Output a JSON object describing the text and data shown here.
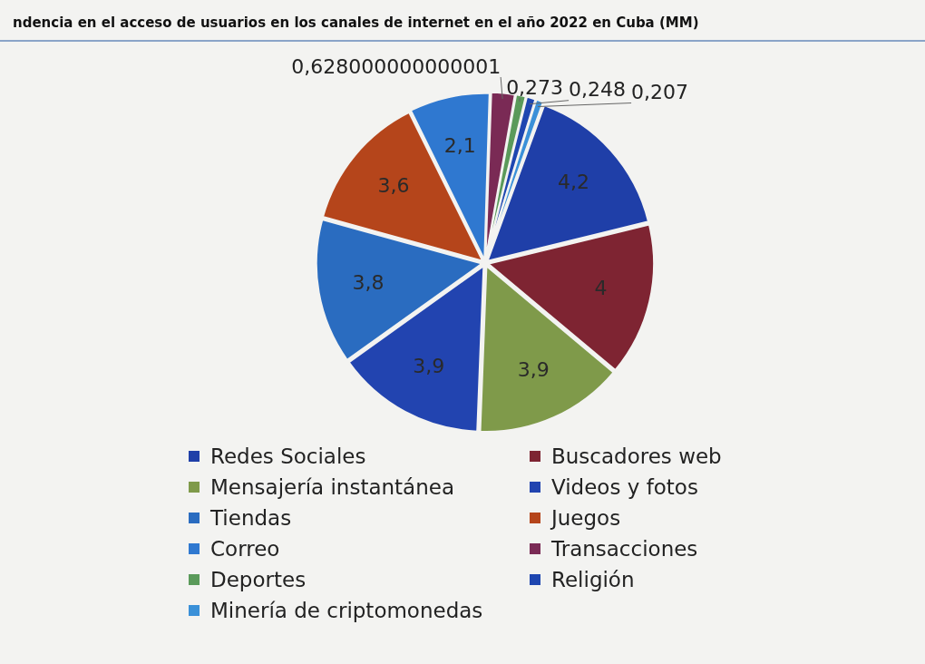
{
  "chart_data": {
    "type": "pie",
    "title": "ndencia en el acceso de usuarios en los canales de internet en el año 2022 en Cuba (MM)",
    "categories": [
      "Redes Sociales",
      "Buscadores web",
      "Mensajería instantánea",
      "Videos y fotos",
      "Tiendas",
      "Juegos",
      "Correo",
      "Transacciones",
      "Deportes",
      "Religión",
      "Minería de criptomonedas"
    ],
    "values": [
      4.2,
      4,
      3.9,
      3.9,
      3.8,
      3.6,
      2.1,
      0.628000000000001,
      0.273,
      0.248,
      0.207
    ],
    "value_labels": [
      "4,2",
      "4",
      "3,9",
      "3,9",
      "3,8",
      "3,6",
      "2,1",
      "0,628000000000001",
      "0,273",
      "0,248",
      "0,207"
    ],
    "colors": [
      "#1f3fa8",
      "#7e2432",
      "#7f9a4a",
      "#2244b0",
      "#2a6cc0",
      "#b5451b",
      "#2f78d0",
      "#7a2a55",
      "#5a9a5a",
      "#1e46b0",
      "#3a90d8"
    ],
    "legend": "bottom"
  }
}
